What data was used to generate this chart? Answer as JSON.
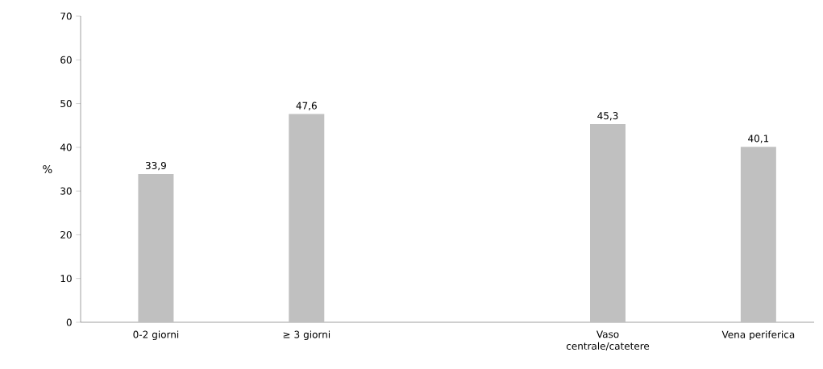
{
  "chart_data": {
    "type": "bar",
    "ylabel": "%",
    "categories": [
      "0-2 giorni",
      "≥ 3 giorni",
      null,
      "Vaso centrale/catetere",
      "Vena periferica"
    ],
    "values": [
      33.9,
      47.6,
      null,
      45.3,
      40.1
    ],
    "value_labels": [
      "33,9",
      "47,6",
      null,
      "45,3",
      "40,1"
    ],
    "color": "#c0c0c0",
    "ylim": [
      0,
      70
    ],
    "yticks": [
      0,
      10,
      20,
      30,
      40,
      50,
      60,
      70
    ],
    "grid": false
  }
}
